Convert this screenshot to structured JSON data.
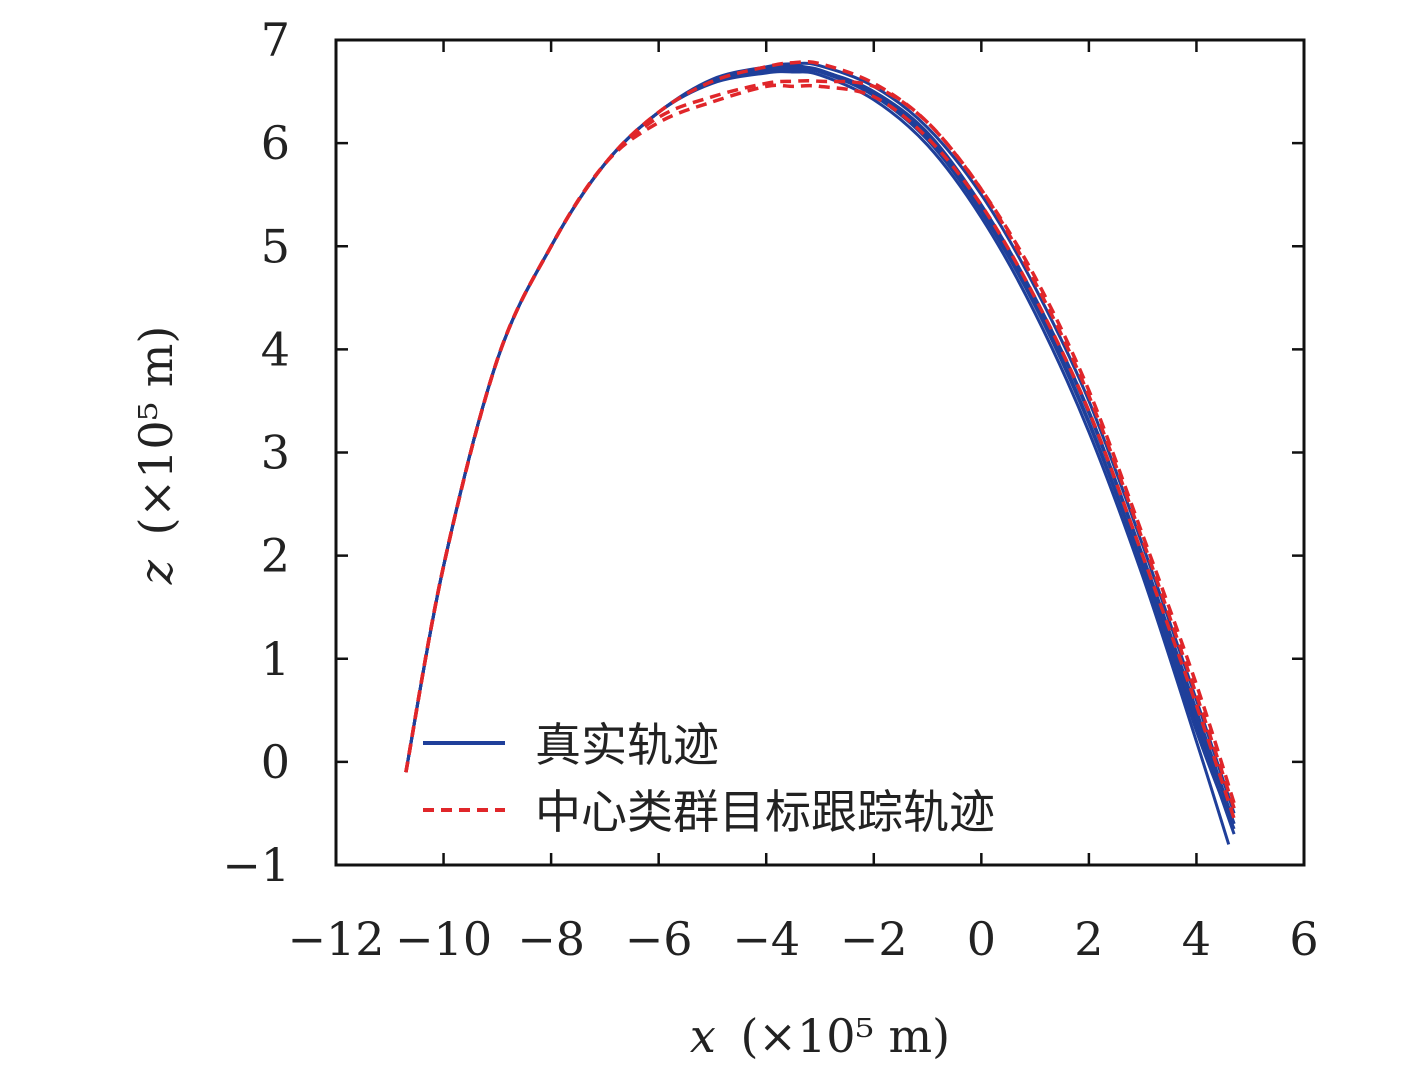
{
  "chart_data": {
    "type": "line",
    "title": "",
    "xlabel": {
      "var": "x",
      "unit": "(×10⁵ m)"
    },
    "ylabel": {
      "var": "z",
      "unit": "(×10⁵ m)"
    },
    "xlim": [
      -12,
      6
    ],
    "ylim": [
      -1,
      7
    ],
    "x_ticks": [
      -12,
      -10,
      -8,
      -6,
      -4,
      -2,
      0,
      2,
      4,
      6
    ],
    "y_ticks": [
      -1,
      0,
      1,
      2,
      3,
      4,
      5,
      6,
      7
    ],
    "x_tick_labels": [
      "−12",
      "−10",
      "−8",
      "−6",
      "−4",
      "−2",
      "0",
      "2",
      "4",
      "6"
    ],
    "y_tick_labels": [
      "−1",
      "0",
      "1",
      "2",
      "3",
      "4",
      "5",
      "6",
      "7"
    ],
    "grid": false,
    "legend_position": "bottom-left",
    "series": [
      {
        "name": "真实轨迹",
        "style": "solid",
        "color": "#1f3f9a",
        "trajectories": [
          {
            "x": [
              -10.7,
              -10.0,
              -9.0,
              -8.0,
              -7.0,
              -6.0,
              -5.0,
              -4.0,
              -3.5,
              -3.0,
              -2.0,
              -1.0,
              0.0,
              1.0,
              2.0,
              3.0,
              4.0,
              4.7
            ],
            "y": [
              -0.1,
              1.9,
              3.9,
              5.0,
              5.8,
              6.3,
              6.6,
              6.72,
              6.75,
              6.7,
              6.5,
              6.1,
              5.4,
              4.5,
              3.4,
              2.0,
              0.5,
              -0.6
            ]
          },
          {
            "x": [
              -10.7,
              -10.0,
              -9.0,
              -8.0,
              -7.0,
              -6.0,
              -5.0,
              -4.0,
              -3.5,
              -3.0,
              -2.0,
              -1.0,
              0.0,
              1.0,
              2.0,
              3.0,
              4.0,
              4.6
            ],
            "y": [
              -0.1,
              1.9,
              3.9,
              5.0,
              5.8,
              6.3,
              6.58,
              6.68,
              6.69,
              6.66,
              6.42,
              5.98,
              5.28,
              4.35,
              3.2,
              1.8,
              0.2,
              -0.8
            ]
          },
          {
            "x": [
              -10.7,
              -10.0,
              -9.0,
              -8.0,
              -7.0,
              -6.0,
              -5.0,
              -4.0,
              -3.5,
              -3.0,
              -2.0,
              -1.0,
              0.0,
              1.0,
              2.0,
              3.0,
              4.0,
              4.7
            ],
            "y": [
              -0.1,
              1.9,
              3.9,
              5.0,
              5.8,
              6.3,
              6.6,
              6.7,
              6.72,
              6.7,
              6.5,
              6.05,
              5.35,
              4.45,
              3.3,
              1.9,
              0.35,
              -0.7
            ]
          },
          {
            "x": [
              -10.7,
              -10.0,
              -9.0,
              -8.0,
              -7.0,
              -6.0,
              -5.0,
              -4.0,
              -3.5,
              -3.0,
              -2.0,
              -1.0,
              0.0,
              1.0,
              2.0,
              3.0,
              4.0,
              4.7
            ],
            "y": [
              -0.1,
              1.9,
              3.9,
              5.0,
              5.8,
              6.3,
              6.62,
              6.74,
              6.77,
              6.75,
              6.55,
              6.15,
              5.5,
              4.6,
              3.5,
              2.1,
              0.6,
              -0.5
            ]
          },
          {
            "x": [
              -10.7,
              -10.0,
              -9.0,
              -8.0,
              -7.0,
              -6.0,
              -5.0,
              -4.0,
              -3.5,
              -3.0,
              -2.0,
              -1.0,
              0.0,
              1.0,
              2.0,
              3.0,
              4.0,
              4.7
            ],
            "y": [
              -0.1,
              1.9,
              3.9,
              5.0,
              5.8,
              6.3,
              6.6,
              6.71,
              6.73,
              6.71,
              6.48,
              6.08,
              5.4,
              4.5,
              3.38,
              1.98,
              0.42,
              -0.6
            ]
          },
          {
            "x": [
              -10.7,
              -10.0,
              -9.0,
              -8.0,
              -7.0,
              -6.0,
              -5.0,
              -4.0,
              -3.5,
              -3.0,
              -2.0,
              -1.0,
              0.0,
              1.0,
              2.0,
              3.0,
              4.0,
              4.7
            ],
            "y": [
              -0.1,
              1.9,
              3.9,
              5.0,
              5.8,
              6.3,
              6.59,
              6.69,
              6.71,
              6.69,
              6.46,
              6.03,
              5.33,
              4.42,
              3.28,
              1.88,
              0.3,
              -0.65
            ]
          }
        ]
      },
      {
        "name": "中心类群目标跟踪轨迹",
        "style": "dashed",
        "color": "#e0262a",
        "trajectories": [
          {
            "x": [
              -10.7,
              -10.0,
              -9.0,
              -8.0,
              -7.0,
              -6.0,
              -5.0,
              -4.0,
              -3.5,
              -3.0,
              -2.0,
              -1.0,
              0.0,
              1.0,
              2.0,
              3.0,
              4.0,
              4.7
            ],
            "y": [
              -0.1,
              1.9,
              3.9,
              5.0,
              5.8,
              6.25,
              6.45,
              6.58,
              6.6,
              6.6,
              6.55,
              6.2,
              5.55,
              4.7,
              3.6,
              2.2,
              0.75,
              -0.4
            ]
          },
          {
            "x": [
              -10.7,
              -10.0,
              -9.0,
              -8.0,
              -7.0,
              -6.0,
              -5.0,
              -4.0,
              -3.5,
              -3.0,
              -2.0,
              -1.0,
              0.0,
              1.0,
              2.0,
              3.0,
              4.0,
              4.7
            ],
            "y": [
              -0.1,
              1.9,
              3.9,
              5.0,
              5.8,
              6.2,
              6.4,
              6.55,
              6.55,
              6.55,
              6.45,
              6.05,
              5.4,
              4.5,
              3.4,
              2.0,
              0.55,
              -0.55
            ]
          },
          {
            "x": [
              -10.7,
              -10.0,
              -9.0,
              -8.0,
              -7.0,
              -6.0,
              -5.0,
              -4.0,
              -3.5,
              -3.0,
              -2.0,
              -1.0,
              0.0,
              1.0,
              2.0,
              3.0,
              4.0,
              4.7
            ],
            "y": [
              -0.1,
              1.9,
              3.9,
              5.0,
              5.8,
              6.3,
              6.6,
              6.74,
              6.78,
              6.77,
              6.58,
              6.2,
              5.55,
              4.65,
              3.55,
              2.15,
              0.65,
              -0.45
            ]
          }
        ]
      }
    ]
  }
}
